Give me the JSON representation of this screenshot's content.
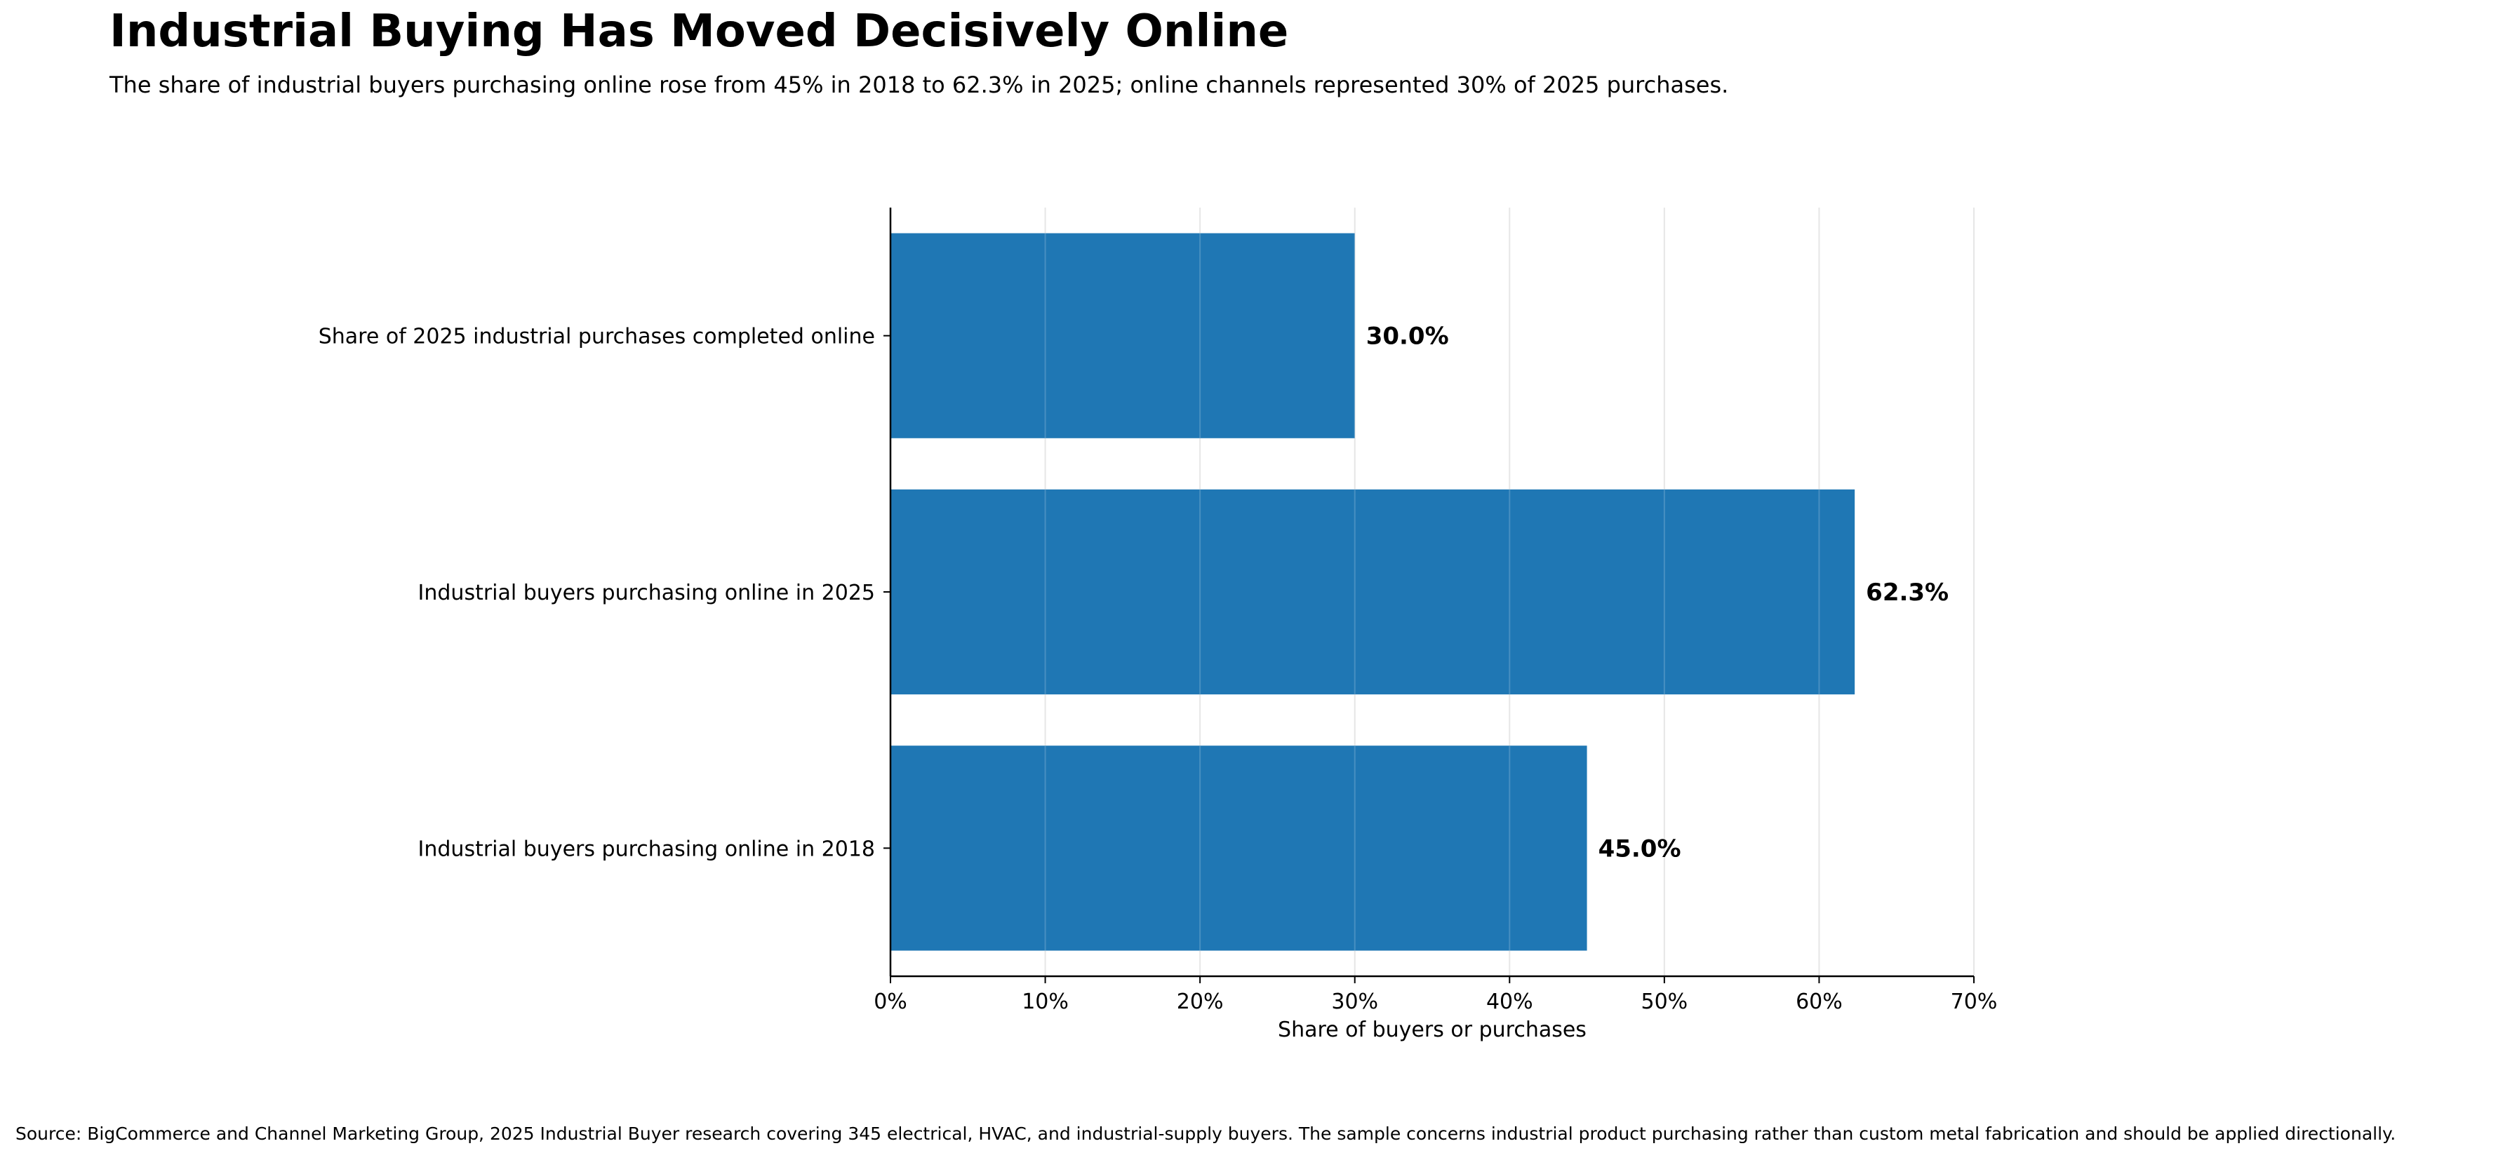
{
  "title": "Industrial Buying Has Moved Decisively Online",
  "subtitle": "The share of industrial buyers purchasing online rose from 45% in 2018 to 62.3% in 2025; online channels represented 30% of 2025 purchases.",
  "source": "Source: BigCommerce and Channel Marketing Group, 2025 Industrial Buyer research covering 345 electrical, HVAC, and industrial-supply buyers. The sample concerns industrial product purchasing rather than custom metal fabrication and should be applied directionally.",
  "chart_data": {
    "type": "bar",
    "orientation": "horizontal",
    "categories": [
      "Share of 2025 industrial purchases completed online",
      "Industrial buyers purchasing online in 2025",
      "Industrial buyers purchasing online in 2018"
    ],
    "values": [
      30.0,
      62.3,
      45.0
    ],
    "data_labels": [
      "30.0%",
      "62.3%",
      "45.0%"
    ],
    "xlabel": "Share of buyers or purchases",
    "ylabel": "",
    "xlim": [
      0,
      70
    ],
    "xticks": [
      0,
      10,
      20,
      30,
      40,
      50,
      60,
      70
    ],
    "xtick_labels": [
      "0%",
      "10%",
      "20%",
      "30%",
      "40%",
      "50%",
      "60%",
      "70%"
    ],
    "grid": "vertical",
    "legend": "none",
    "bar_color": "#1f77b4",
    "grid_color": "#e6e6e6"
  }
}
